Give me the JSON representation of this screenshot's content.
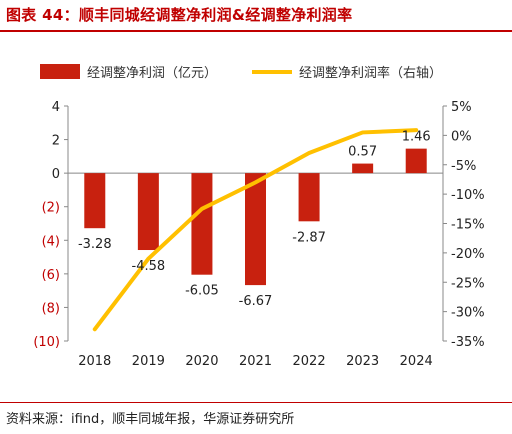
{
  "title": "图表 44：顺丰同城经调整净利润&经调整净利润率",
  "source": "资料来源：ifind，顺丰同城年报，华源证券研究所",
  "colors": {
    "bar": "#c8210f",
    "line": "#ffc000",
    "title": "#c00000",
    "negative_tick": "#c00000"
  },
  "chart_data": {
    "type": "bar+line",
    "categories": [
      "2018",
      "2019",
      "2020",
      "2021",
      "2022",
      "2023",
      "2024"
    ],
    "series": [
      {
        "name": "经调整净利润（亿元）",
        "type": "bar",
        "axis": "left",
        "values": [
          -3.28,
          -4.58,
          -6.05,
          -6.67,
          -2.87,
          0.57,
          1.46
        ],
        "labels": [
          "-3.28",
          "-4.58",
          "-6.05",
          "-6.67",
          "-2.87",
          "0.57",
          "1.46"
        ]
      },
      {
        "name": "经调整净利润率（右轴）",
        "type": "line",
        "axis": "right",
        "values": [
          -33,
          -21,
          -12.5,
          -8,
          -3,
          0.5,
          0.9
        ]
      }
    ],
    "left_axis": {
      "range": [
        -10,
        4
      ],
      "ticks": [
        4,
        2,
        0,
        -2,
        -4,
        -6,
        -8,
        -10
      ],
      "tick_labels": [
        "4",
        "2",
        "0",
        "(2)",
        "(4)",
        "(6)",
        "(8)",
        "(10)"
      ]
    },
    "right_axis": {
      "range": [
        -35,
        5
      ],
      "ticks": [
        5,
        0,
        -5,
        -10,
        -15,
        -20,
        -25,
        -30,
        -35
      ],
      "tick_labels": [
        "5%",
        "0%",
        "-5%",
        "-10%",
        "-15%",
        "-20%",
        "-25%",
        "-30%",
        "-35%"
      ]
    },
    "legend": {
      "position": "top"
    },
    "grid": false
  }
}
